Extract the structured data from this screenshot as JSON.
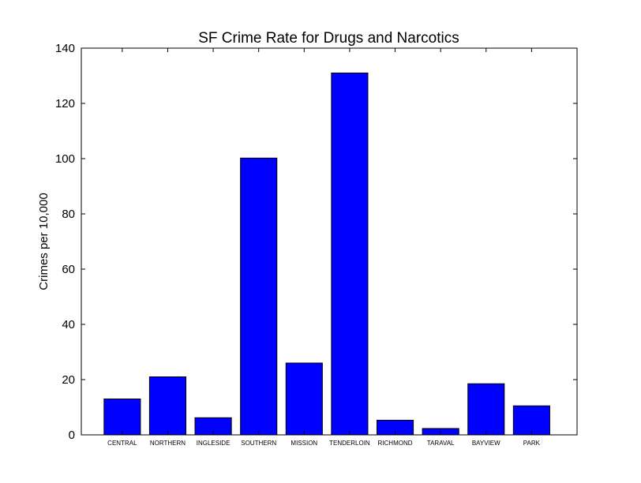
{
  "chart_data": {
    "type": "bar",
    "title": "SF Crime Rate for Drugs and Narcotics",
    "xlabel": "",
    "ylabel": "Crimes per 10,000",
    "ylim": [
      0,
      140
    ],
    "yticks": [
      "0",
      "20",
      "40",
      "60",
      "80",
      "100",
      "120",
      "140"
    ],
    "categories": [
      "CENTRAL",
      "NORTHERN",
      "INGLESIDE",
      "SOUTHERN",
      "MISSION",
      "TENDERLOIN",
      "RICHMOND",
      "TARAVAL",
      "BAYVIEW",
      "PARK"
    ],
    "values": [
      13.0,
      21.0,
      6.2,
      100.2,
      26.0,
      131.0,
      5.3,
      2.3,
      18.5,
      10.5
    ],
    "bar_color": "#0000ff",
    "edge_color": "#000000",
    "grid": false,
    "legend": false
  }
}
